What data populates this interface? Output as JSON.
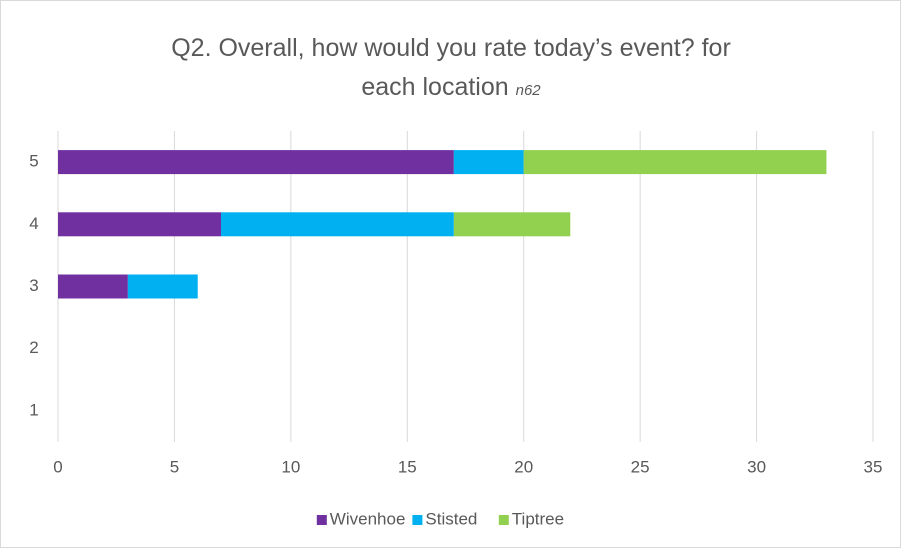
{
  "chart_data": {
    "type": "stacked-barh",
    "title": "Q2. Overall, how would you rate today’s event? for each location",
    "annotation": "n62",
    "categories": [
      "5",
      "4",
      "3",
      "2",
      "1"
    ],
    "series": [
      {
        "name": "Wivenhoe",
        "color": "#7030a0",
        "values": [
          17,
          7,
          3,
          0,
          0
        ]
      },
      {
        "name": "Stisted",
        "color": "#00b0f0",
        "values": [
          3,
          10,
          3,
          0,
          0
        ]
      },
      {
        "name": "Tiptree",
        "color": "#92d050",
        "values": [
          13,
          5,
          0,
          0,
          0
        ]
      }
    ],
    "xlim": [
      0,
      35
    ],
    "xticks": [
      0,
      5,
      10,
      15,
      20,
      25,
      30,
      35
    ],
    "grid": true,
    "legend": "bottom"
  }
}
